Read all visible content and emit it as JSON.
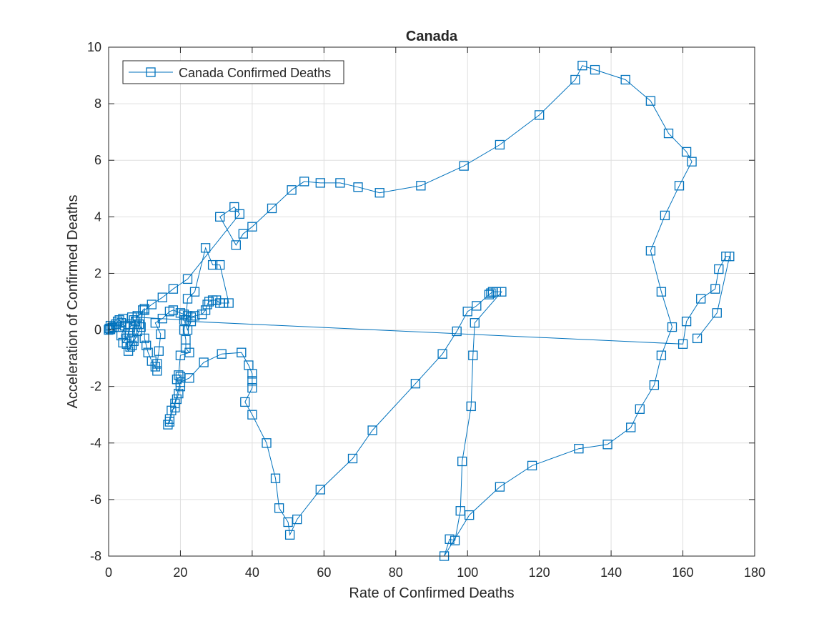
{
  "chart_data": {
    "type": "line",
    "title": "Canada",
    "xlabel": "Rate of Confirmed Deaths",
    "ylabel": "Acceleration of Confirmed Deaths",
    "xlim": [
      0,
      180
    ],
    "ylim": [
      -8,
      10
    ],
    "xticks": [
      0,
      20,
      40,
      60,
      80,
      100,
      120,
      140,
      160,
      180
    ],
    "yticks": [
      -8,
      -6,
      -4,
      -2,
      0,
      2,
      4,
      6,
      8,
      10
    ],
    "grid": true,
    "legend_position": "top-left",
    "marker": "square",
    "colors": {
      "series": "#0072BD"
    },
    "series": [
      {
        "name": "Canada Confirmed Deaths",
        "points": [
          [
            0,
            0
          ],
          [
            0.2,
            0.05
          ],
          [
            0.5,
            0.02
          ],
          [
            1,
            0.08
          ],
          [
            0.5,
            0.15
          ],
          [
            1.5,
            0.1
          ],
          [
            2,
            0.2
          ],
          [
            2.5,
            0.3
          ],
          [
            3,
            0.35
          ],
          [
            3.5,
            0.25
          ],
          [
            4,
            0.4
          ],
          [
            3,
            0.1
          ],
          [
            4.5,
            0.15
          ],
          [
            3.5,
            -0.2
          ],
          [
            4,
            -0.45
          ],
          [
            5,
            -0.3
          ],
          [
            5.5,
            -0.1
          ],
          [
            6,
            0.2
          ],
          [
            6.5,
            0.45
          ],
          [
            7,
            0.35
          ],
          [
            6,
            0.1
          ],
          [
            5,
            -0.5
          ],
          [
            5.5,
            -0.75
          ],
          [
            6,
            -0.6
          ],
          [
            7,
            -0.4
          ],
          [
            7.5,
            0.3
          ],
          [
            8,
            0.5
          ],
          [
            8.5,
            0.2
          ],
          [
            8,
            -0.05
          ],
          [
            7,
            -0.3
          ],
          [
            6.5,
            -0.55
          ],
          [
            9,
            0.1
          ],
          [
            9.5,
            0.7
          ],
          [
            10,
            0.75
          ],
          [
            10,
            -0.3
          ],
          [
            10.5,
            -0.55
          ],
          [
            11,
            -0.8
          ],
          [
            12,
            -1.1
          ],
          [
            13,
            -1.3
          ],
          [
            13.5,
            -1.45
          ],
          [
            13.5,
            -1.2
          ],
          [
            14,
            -0.75
          ],
          [
            14.5,
            -0.15
          ],
          [
            13,
            0.25
          ],
          [
            15,
            0.4
          ],
          [
            17,
            0.65
          ],
          [
            18,
            0.7
          ],
          [
            20,
            0.6
          ],
          [
            21,
            0.55
          ],
          [
            22,
            0.5
          ],
          [
            23,
            0.45
          ],
          [
            24,
            0.5
          ],
          [
            26,
            0.55
          ],
          [
            27,
            0.7
          ],
          [
            27.5,
            0.9
          ],
          [
            28,
            1.0
          ],
          [
            29,
            1.05
          ],
          [
            30,
            1.05
          ],
          [
            31,
            0.95
          ],
          [
            32,
            0.95
          ],
          [
            33.5,
            0.95
          ],
          [
            31,
            2.3
          ],
          [
            29,
            2.3
          ],
          [
            27,
            2.9
          ],
          [
            24,
            1.35
          ],
          [
            22,
            1.1
          ],
          [
            21.5,
            0.35
          ],
          [
            21,
            0.0
          ],
          [
            21.5,
            -0.35
          ],
          [
            21.5,
            -0.65
          ],
          [
            22.5,
            -0.8
          ],
          [
            20,
            -0.9
          ],
          [
            19.5,
            -1.6
          ],
          [
            20,
            -1.65
          ],
          [
            19,
            -1.75
          ],
          [
            20,
            -2.0
          ],
          [
            19.5,
            -2.25
          ],
          [
            19,
            -2.45
          ],
          [
            18.5,
            -2.6
          ],
          [
            18.5,
            -2.75
          ],
          [
            17.5,
            -2.85
          ],
          [
            17,
            -3.15
          ],
          [
            16.5,
            -3.35
          ],
          [
            17,
            -3.25
          ],
          [
            20,
            -1.85
          ],
          [
            22.5,
            -1.7
          ],
          [
            26.5,
            -1.15
          ],
          [
            31.5,
            -0.85
          ],
          [
            37,
            -0.8
          ],
          [
            39,
            -1.25
          ],
          [
            40,
            -1.55
          ],
          [
            40,
            -1.8
          ],
          [
            40,
            -2.05
          ],
          [
            38,
            -2.55
          ],
          [
            40,
            -3.0
          ],
          [
            44,
            -4.0
          ],
          [
            46.5,
            -5.25
          ],
          [
            47.5,
            -6.3
          ],
          [
            50,
            -6.8
          ],
          [
            50.5,
            -7.25
          ],
          [
            52.5,
            -6.7
          ],
          [
            59,
            -5.65
          ],
          [
            68,
            -4.55
          ],
          [
            73.5,
            -3.55
          ],
          [
            85.5,
            -1.9
          ],
          [
            93,
            -0.85
          ],
          [
            97,
            -0.05
          ],
          [
            100,
            0.65
          ],
          [
            102.5,
            0.85
          ],
          [
            106,
            1.25
          ],
          [
            106.5,
            1.3
          ],
          [
            107,
            1.35
          ],
          [
            108,
            1.35
          ],
          [
            109.5,
            1.35
          ],
          [
            102,
            0.25
          ],
          [
            101.5,
            -0.9
          ],
          [
            101,
            -2.7
          ],
          [
            98.5,
            -4.65
          ],
          [
            98,
            -6.4
          ],
          [
            96.5,
            -7.45
          ],
          [
            95,
            -7.4
          ],
          [
            93.5,
            -8.0
          ],
          [
            100.5,
            -6.55
          ],
          [
            109,
            -5.55
          ],
          [
            118,
            -4.8
          ],
          [
            131,
            -4.2
          ],
          [
            139,
            -4.05
          ],
          [
            145.5,
            -3.45
          ],
          [
            148,
            -2.8
          ],
          [
            152,
            -1.95
          ],
          [
            154,
            -0.9
          ],
          [
            157,
            0.1
          ],
          [
            154,
            1.35
          ],
          [
            151,
            2.8
          ],
          [
            155,
            4.05
          ],
          [
            159,
            5.1
          ],
          [
            162.5,
            5.95
          ],
          [
            161,
            6.3
          ],
          [
            156,
            6.95
          ],
          [
            151,
            8.1
          ],
          [
            144,
            8.85
          ],
          [
            135.5,
            9.2
          ],
          [
            132,
            9.35
          ],
          [
            130,
            8.85
          ],
          [
            120,
            7.6
          ],
          [
            109,
            6.55
          ],
          [
            99,
            5.8
          ],
          [
            87,
            5.1
          ],
          [
            75.5,
            4.85
          ],
          [
            69.5,
            5.05
          ],
          [
            64.5,
            5.2
          ],
          [
            59,
            5.2
          ],
          [
            54.5,
            5.25
          ],
          [
            51,
            4.95
          ],
          [
            45.5,
            4.3
          ],
          [
            40,
            3.65
          ],
          [
            37.5,
            3.4
          ],
          [
            35.5,
            3.0
          ],
          [
            31,
            4.0
          ],
          [
            35,
            4.35
          ],
          [
            36.5,
            4.1
          ],
          [
            22,
            1.8
          ],
          [
            18,
            1.45
          ],
          [
            15,
            1.15
          ],
          [
            12,
            0.9
          ],
          [
            10,
            0.7
          ],
          [
            8,
            0.45
          ],
          [
            21,
            0.35
          ],
          [
            22,
            0.0
          ],
          [
            23,
            0.3
          ],
          [
            160,
            -0.5
          ],
          [
            161,
            0.3
          ],
          [
            165,
            1.1
          ],
          [
            169,
            1.45
          ],
          [
            170,
            2.15
          ],
          [
            172,
            2.6
          ],
          [
            173,
            2.6
          ],
          [
            169.5,
            0.6
          ],
          [
            164,
            -0.3
          ]
        ]
      }
    ]
  }
}
